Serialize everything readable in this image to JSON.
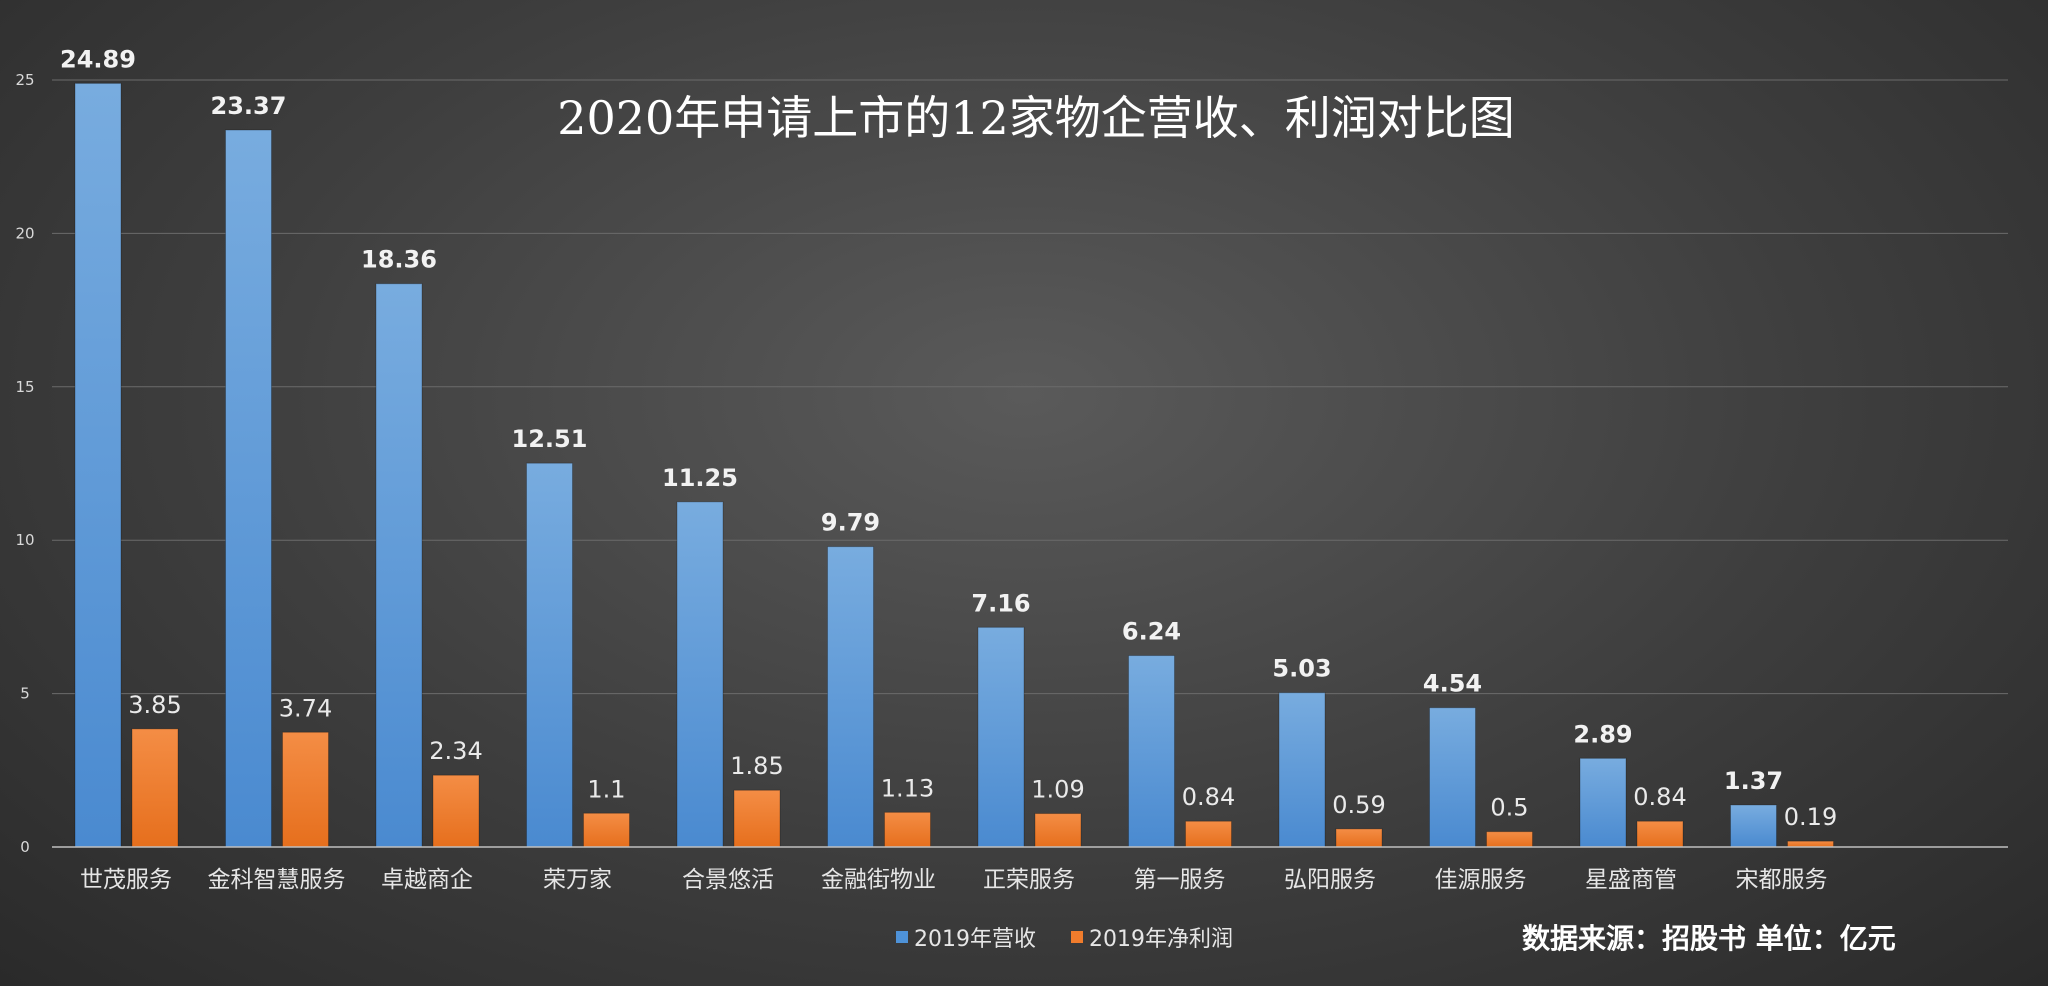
{
  "chart_data": {
    "type": "bar",
    "title": "2020年申请上市的12家物企营收、利润对比图",
    "categories": [
      "世茂服务",
      "金科智慧服务",
      "卓越商企",
      "荣万家",
      "合景悠活",
      "金融街物业",
      "正荣服务",
      "第一服务",
      "弘阳服务",
      "佳源服务",
      "星盛商管",
      "宋都服务"
    ],
    "series": [
      {
        "name": "2019年营收",
        "color": "#4e92d8",
        "values": [
          24.89,
          23.37,
          18.36,
          12.51,
          11.25,
          9.79,
          7.16,
          6.24,
          5.03,
          4.54,
          2.89,
          1.37
        ]
      },
      {
        "name": "2019年净利润",
        "color": "#f07c2c",
        "values": [
          3.85,
          3.74,
          2.34,
          1.1,
          1.85,
          1.13,
          1.09,
          0.84,
          0.59,
          0.5,
          0.84,
          0.19
        ]
      }
    ],
    "ylim": [
      0,
      25
    ],
    "yticks": [
      0,
      5,
      10,
      15,
      20,
      25
    ],
    "grid": true,
    "legend_position": "bottom"
  },
  "source_note": "数据来源：招股书 单位：亿元"
}
